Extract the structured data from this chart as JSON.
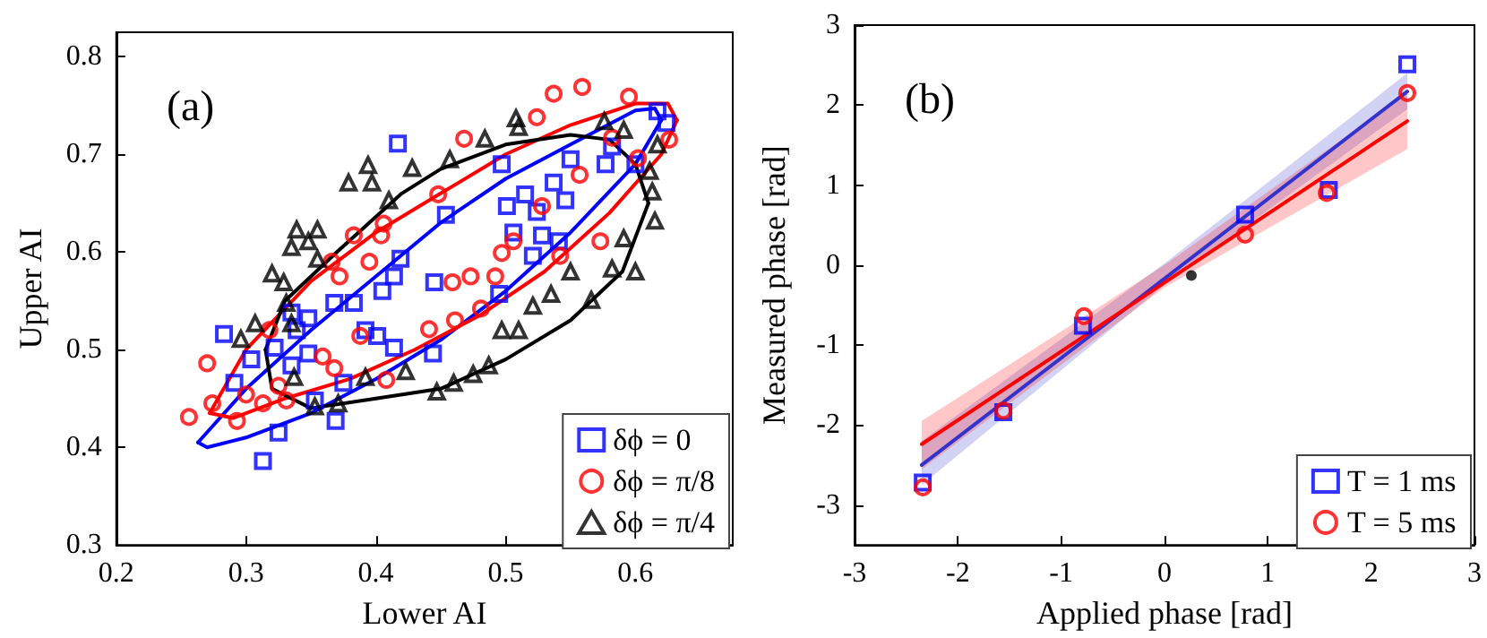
{
  "chart_data": [
    {
      "type": "scatter",
      "xlabel": "Lower AI",
      "ylabel": "Upper AI",
      "annotations": [
        "(a)"
      ],
      "xlim": [
        0.2,
        0.675
      ],
      "ylim": [
        0.3,
        0.825
      ],
      "xticks": [
        0.2,
        0.3,
        0.4,
        0.5,
        0.6
      ],
      "yticks": [
        0.3,
        0.4,
        0.5,
        0.6,
        0.7,
        0.8
      ],
      "legend": "bottom right",
      "series": [
        {
          "name": "δϕ = 0",
          "color": "#0000ff",
          "marker": "square",
          "x": [
            0.313,
            0.283,
            0.325,
            0.369,
            0.291,
            0.304,
            0.322,
            0.339,
            0.348,
            0.368,
            0.383,
            0.405,
            0.414,
            0.419,
            0.392,
            0.401,
            0.348,
            0.335,
            0.375,
            0.353,
            0.414,
            0.335,
            0.417,
            0.454,
            0.445,
            0.444,
            0.495,
            0.515,
            0.524,
            0.537,
            0.546,
            0.528,
            0.521,
            0.506,
            0.541,
            0.582,
            0.577,
            0.617,
            0.624,
            0.6,
            0.497,
            0.501,
            0.55
          ],
          "values": [
            0.386,
            0.516,
            0.415,
            0.427,
            0.466,
            0.49,
            0.502,
            0.52,
            0.532,
            0.548,
            0.548,
            0.56,
            0.575,
            0.593,
            0.52,
            0.514,
            0.496,
            0.484,
            0.466,
            0.448,
            0.502,
            0.538,
            0.711,
            0.638,
            0.569,
            0.496,
            0.557,
            0.659,
            0.641,
            0.671,
            0.653,
            0.617,
            0.596,
            0.62,
            0.611,
            0.708,
            0.69,
            0.744,
            0.732,
            0.69,
            0.69,
            0.647,
            0.695
          ]
        },
        {
          "name": "δϕ = π/8",
          "color": "#ff0000",
          "marker": "circle",
          "x": [
            0.256,
            0.27,
            0.274,
            0.293,
            0.3,
            0.313,
            0.325,
            0.331,
            0.318,
            0.359,
            0.368,
            0.388,
            0.408,
            0.372,
            0.383,
            0.395,
            0.404,
            0.406,
            0.366,
            0.537,
            0.559,
            0.595,
            0.626,
            0.468,
            0.528,
            0.557,
            0.506,
            0.497,
            0.542,
            0.573,
            0.459,
            0.473,
            0.492,
            0.481,
            0.461,
            0.441,
            0.524,
            0.582,
            0.602,
            0.448
          ],
          "values": [
            0.431,
            0.486,
            0.445,
            0.427,
            0.454,
            0.445,
            0.463,
            0.448,
            0.52,
            0.493,
            0.481,
            0.514,
            0.469,
            0.575,
            0.617,
            0.59,
            0.617,
            0.629,
            0.59,
            0.762,
            0.769,
            0.759,
            0.715,
            0.716,
            0.647,
            0.679,
            0.611,
            0.599,
            0.596,
            0.611,
            0.569,
            0.575,
            0.575,
            0.542,
            0.53,
            0.521,
            0.738,
            0.717,
            0.696,
            0.659
          ]
        },
        {
          "name": "δϕ = π/4",
          "color": "#000000",
          "marker": "triangle",
          "x": [
            0.296,
            0.307,
            0.32,
            0.329,
            0.331,
            0.335,
            0.339,
            0.355,
            0.348,
            0.355,
            0.379,
            0.394,
            0.397,
            0.41,
            0.428,
            0.335,
            0.337,
            0.353,
            0.371,
            0.392,
            0.423,
            0.447,
            0.46,
            0.475,
            0.487,
            0.497,
            0.51,
            0.521,
            0.535,
            0.566,
            0.55,
            0.582,
            0.6,
            0.591,
            0.615,
            0.613,
            0.611,
            0.617,
            0.591,
            0.576,
            0.508,
            0.484,
            0.457,
            0.51
          ],
          "values": [
            0.511,
            0.527,
            0.578,
            0.569,
            0.548,
            0.605,
            0.623,
            0.623,
            0.611,
            0.593,
            0.671,
            0.689,
            0.671,
            0.653,
            0.686,
            0.527,
            0.472,
            0.442,
            0.445,
            0.472,
            0.478,
            0.457,
            0.466,
            0.475,
            0.484,
            0.52,
            0.52,
            0.545,
            0.557,
            0.551,
            0.58,
            0.583,
            0.58,
            0.614,
            0.632,
            0.662,
            0.683,
            0.71,
            0.725,
            0.734,
            0.737,
            0.716,
            0.695,
            0.728
          ]
        },
        {
          "type": "line",
          "color": "#0000ff",
          "marker": "none",
          "x": [
            0.263,
            0.3,
            0.35,
            0.4,
            0.45,
            0.5,
            0.55,
            0.6,
            0.615,
            0.62
          ],
          "values": [
            0.405,
            0.46,
            0.52,
            0.575,
            0.63,
            0.675,
            0.71,
            0.745,
            0.747,
            0.735
          ]
        },
        {
          "type": "line",
          "color": "#0000ff",
          "marker": "none",
          "x": [
            0.263,
            0.27,
            0.3,
            0.35,
            0.4,
            0.45,
            0.5,
            0.55,
            0.6,
            0.62
          ],
          "values": [
            0.405,
            0.4,
            0.41,
            0.435,
            0.47,
            0.51,
            0.56,
            0.62,
            0.69,
            0.735
          ]
        },
        {
          "type": "line",
          "color": "#ff0000",
          "marker": "none",
          "x": [
            0.272,
            0.3,
            0.35,
            0.4,
            0.45,
            0.5,
            0.55,
            0.6,
            0.625,
            0.632
          ],
          "values": [
            0.435,
            0.5,
            0.57,
            0.62,
            0.66,
            0.7,
            0.73,
            0.752,
            0.752,
            0.735
          ]
        },
        {
          "type": "line",
          "color": "#ff0000",
          "marker": "none",
          "x": [
            0.272,
            0.29,
            0.33,
            0.38,
            0.43,
            0.48,
            0.53,
            0.58,
            0.62,
            0.632
          ],
          "values": [
            0.435,
            0.43,
            0.45,
            0.47,
            0.5,
            0.535,
            0.58,
            0.64,
            0.7,
            0.735
          ]
        },
        {
          "type": "line",
          "color": "#000000",
          "marker": "none",
          "x": [
            0.315,
            0.33,
            0.37,
            0.42,
            0.45,
            0.5,
            0.55,
            0.58,
            0.6,
            0.61
          ],
          "values": [
            0.5,
            0.55,
            0.6,
            0.66,
            0.685,
            0.71,
            0.72,
            0.715,
            0.69,
            0.65
          ]
        },
        {
          "type": "line",
          "color": "#000000",
          "marker": "none",
          "x": [
            0.315,
            0.32,
            0.35,
            0.4,
            0.45,
            0.5,
            0.55,
            0.59,
            0.61
          ],
          "values": [
            0.5,
            0.46,
            0.44,
            0.45,
            0.46,
            0.49,
            0.53,
            0.58,
            0.65
          ]
        }
      ]
    },
    {
      "type": "scatter",
      "xlabel": "Applied phase [rad]",
      "ylabel": "Measured phase [rad]",
      "annotations": [
        "(b)"
      ],
      "xlim": [
        -3,
        3
      ],
      "ylim": [
        -3.5,
        3
      ],
      "xticks": [
        -3,
        -2,
        -1,
        0,
        1,
        2,
        3
      ],
      "yticks": [
        -3,
        -2,
        -1,
        0,
        1,
        2,
        3
      ],
      "legend": "bottom right",
      "series": [
        {
          "type": "line",
          "color": "#3333cc",
          "marker": "none",
          "x": [
            -2.35,
            0,
            2.35
          ],
          "values": [
            -2.5,
            -0.17,
            2.17
          ],
          "lower": [
            -2.75,
            -0.25,
            1.95
          ],
          "upper": [
            -2.2,
            0.02,
            2.4
          ]
        },
        {
          "type": "line",
          "color": "#ff0000",
          "marker": "none",
          "x": [
            -2.35,
            0,
            2.35
          ],
          "values": [
            -2.24,
            -0.22,
            1.8
          ],
          "lower": [
            -2.55,
            -0.28,
            1.45
          ],
          "upper": [
            -1.95,
            0.0,
            2.15
          ]
        },
        {
          "name": "T = 1 ms",
          "color": "#0000ff",
          "marker": "square",
          "x": [
            -2.34,
            -1.56,
            -0.79,
            0.78,
            1.59,
            2.35
          ],
          "values": [
            -2.72,
            -1.84,
            -0.76,
            0.63,
            0.94,
            2.51
          ]
        },
        {
          "name": "T = 5 ms",
          "color": "#ff0000",
          "marker": "circle",
          "x": [
            -2.34,
            -1.56,
            -0.78,
            0.78,
            1.57,
            2.35
          ],
          "values": [
            -2.78,
            -1.82,
            -0.64,
            0.38,
            0.9,
            2.15
          ]
        },
        {
          "color": "#000000",
          "marker": "circle",
          "x": [
            0.26
          ],
          "values": [
            -0.13
          ]
        }
      ]
    }
  ]
}
